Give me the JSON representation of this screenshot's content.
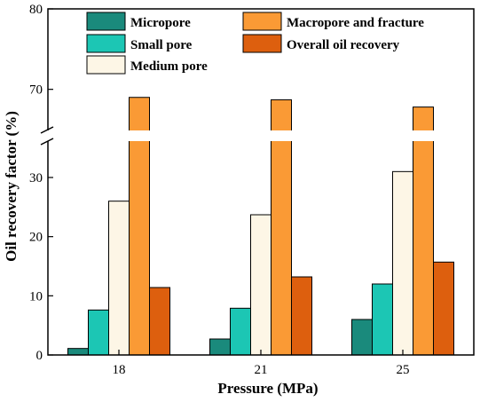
{
  "chart_data": {
    "type": "bar",
    "xlabel": "Pressure (MPa)",
    "ylabel": "Oil recovery factor (%)",
    "categories": [
      "18",
      "21",
      "25"
    ],
    "y_axis_break": {
      "from": 36,
      "to": 65
    },
    "ylim": [
      0,
      80
    ],
    "lower_ticks": [
      0,
      10,
      20,
      30
    ],
    "upper_ticks": [
      70,
      80
    ],
    "legend_position": "top",
    "series": [
      {
        "name": "Micropore",
        "color": "#1a8a7c",
        "values": [
          1.1,
          2.7,
          6.0
        ]
      },
      {
        "name": "Small pore",
        "color": "#1cc6b4",
        "values": [
          7.6,
          7.9,
          12.0
        ]
      },
      {
        "name": "Medium pore",
        "color": "#fdf6e6",
        "values": [
          26.0,
          23.7,
          31.0
        ]
      },
      {
        "name": "Macropore and fracture",
        "color": "#fa9a35",
        "values": [
          69.0,
          68.7,
          67.8
        ]
      },
      {
        "name": "Overall oil recovery",
        "color": "#dd5f0e",
        "values": [
          11.4,
          13.2,
          15.7
        ]
      }
    ]
  }
}
